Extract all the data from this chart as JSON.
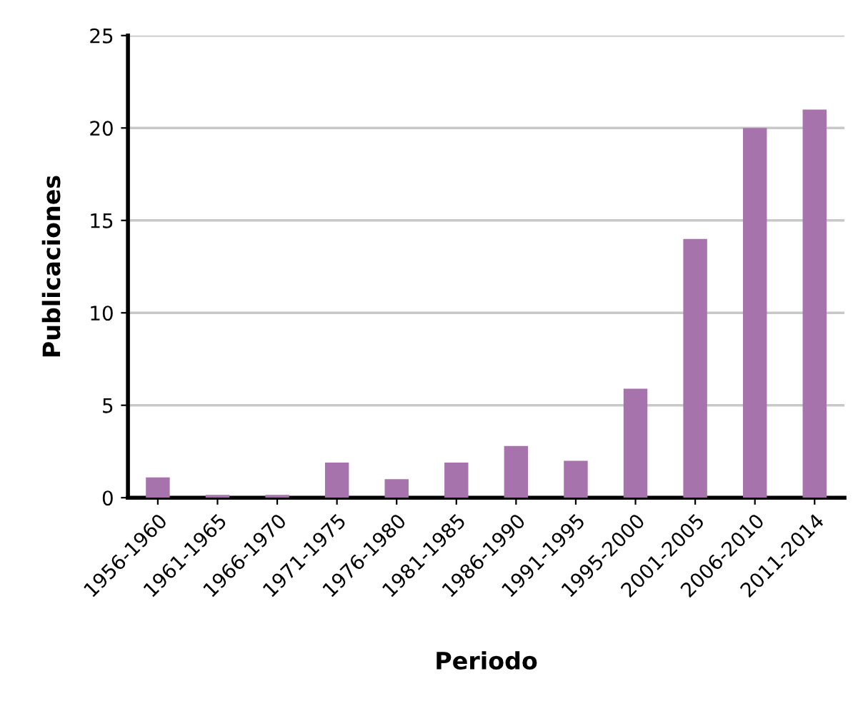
{
  "chart_data": {
    "type": "bar",
    "xlabel": "Periodo",
    "ylabel": "Publicaciones",
    "categories": [
      "1956-1960",
      "1961-1965",
      "1966-1970",
      "1971-1975",
      "1976-1980",
      "1981-1985",
      "1986-1990",
      "1991-1995",
      "1995-2000",
      "2001-2005",
      "2006-2010",
      "2011-2014"
    ],
    "values": [
      1.1,
      0.15,
      0.15,
      1.9,
      1.0,
      1.9,
      2.8,
      2.0,
      5.9,
      14,
      20,
      21
    ],
    "color": "#a673ad",
    "ylim": [
      0,
      25
    ],
    "yticks": [
      0,
      5,
      10,
      15,
      20,
      25
    ],
    "grid": "y"
  }
}
